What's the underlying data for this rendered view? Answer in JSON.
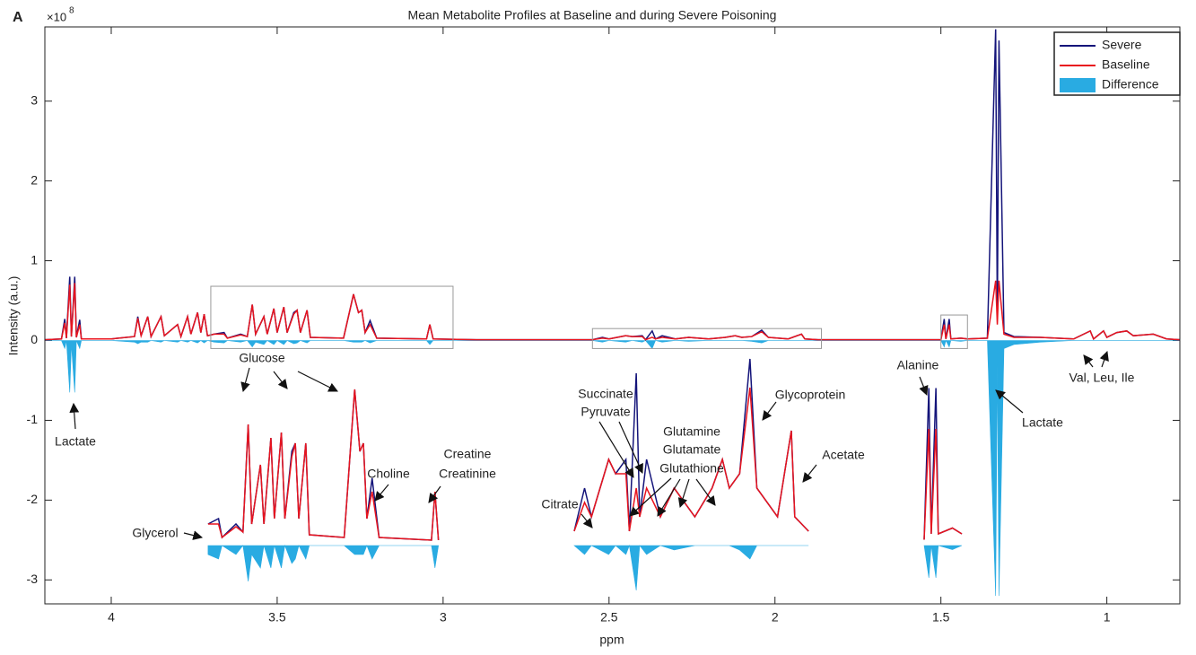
{
  "chart_data": {
    "type": "line",
    "panel_label": "A",
    "title": "Mean Metabolite Profiles at Baseline and during Severe Poisoning",
    "x_label": "ppm",
    "y_label": "Intensity (a.u.)",
    "y_exponent": [
      "×10",
      "8"
    ],
    "xlim": [
      4.2,
      0.78
    ],
    "xticks": [
      4,
      3.5,
      3,
      2.5,
      2,
      1.5,
      1
    ],
    "x_reversed": true,
    "ylim": [
      -3.3,
      3.93
    ],
    "yticks": [
      -3,
      -2,
      -1,
      0,
      1,
      2,
      3
    ],
    "legend_position": "upper right",
    "x": [
      4.2,
      4.15,
      4.14,
      4.135,
      4.125,
      4.12,
      4.11,
      4.105,
      4.095,
      4.09,
      4.0,
      3.93,
      3.92,
      3.91,
      3.89,
      3.88,
      3.85,
      3.84,
      3.8,
      3.79,
      3.77,
      3.76,
      3.74,
      3.73,
      3.72,
      3.71,
      3.69,
      3.66,
      3.65,
      3.61,
      3.59,
      3.575,
      3.565,
      3.54,
      3.53,
      3.51,
      3.5,
      3.48,
      3.47,
      3.45,
      3.44,
      3.43,
      3.41,
      3.4,
      3.3,
      3.27,
      3.255,
      3.245,
      3.235,
      3.22,
      3.2,
      3.05,
      3.04,
      3.03,
      2.9,
      2.55,
      2.52,
      2.5,
      2.45,
      2.43,
      2.4,
      2.39,
      2.37,
      2.36,
      2.34,
      2.3,
      2.26,
      2.2,
      2.15,
      2.12,
      2.1,
      2.07,
      2.04,
      2.02,
      1.96,
      1.92,
      1.91,
      1.87,
      1.6,
      1.5,
      1.49,
      1.485,
      1.475,
      1.47,
      1.44,
      1.42,
      1.36,
      1.335,
      1.33,
      1.325,
      1.31,
      1.28,
      1.2,
      1.1,
      1.05,
      1.04,
      1.01,
      1.0,
      0.97,
      0.94,
      0.92,
      0.86,
      0.82,
      0.78
    ],
    "series": [
      {
        "name": "Severe",
        "color": "#14147a",
        "kind": "line",
        "values": [
          0.01,
          0.02,
          0.27,
          0.03,
          0.8,
          0.05,
          0.8,
          0.04,
          0.26,
          0.02,
          0.02,
          0.05,
          0.3,
          0.06,
          0.3,
          0.05,
          0.3,
          0.06,
          0.2,
          0.05,
          0.3,
          0.08,
          0.35,
          0.1,
          0.33,
          0.06,
          0.08,
          0.1,
          0.03,
          0.08,
          0.05,
          0.45,
          0.08,
          0.3,
          0.08,
          0.4,
          0.1,
          0.42,
          0.1,
          0.35,
          0.38,
          0.1,
          0.38,
          0.04,
          0.03,
          0.58,
          0.35,
          0.38,
          0.1,
          0.25,
          0.03,
          0.02,
          0.2,
          0.02,
          0.01,
          0.01,
          0.04,
          0.02,
          0.06,
          0.05,
          0.06,
          0.01,
          0.12,
          0.02,
          0.06,
          0.02,
          0.04,
          0.02,
          0.04,
          0.06,
          0.04,
          0.05,
          0.13,
          0.04,
          0.02,
          0.08,
          0.02,
          0.01,
          0.01,
          0.01,
          0.27,
          0.02,
          0.27,
          0.02,
          0.03,
          0.02,
          0.03,
          3.9,
          0.3,
          3.76,
          0.1,
          0.05,
          0.04,
          0.02,
          0.12,
          0.02,
          0.12,
          0.04,
          0.1,
          0.12,
          0.06,
          0.08,
          0.02,
          0.01
        ]
      },
      {
        "name": "Baseline",
        "color": "#e8141e",
        "kind": "line",
        "values": [
          0.01,
          0.02,
          0.22,
          0.03,
          0.7,
          0.05,
          0.72,
          0.04,
          0.2,
          0.02,
          0.02,
          0.05,
          0.28,
          0.06,
          0.3,
          0.05,
          0.3,
          0.06,
          0.2,
          0.05,
          0.3,
          0.08,
          0.35,
          0.1,
          0.33,
          0.06,
          0.08,
          0.08,
          0.03,
          0.07,
          0.05,
          0.45,
          0.08,
          0.3,
          0.08,
          0.4,
          0.1,
          0.42,
          0.1,
          0.33,
          0.38,
          0.1,
          0.38,
          0.04,
          0.03,
          0.58,
          0.35,
          0.38,
          0.1,
          0.2,
          0.03,
          0.02,
          0.2,
          0.02,
          0.01,
          0.01,
          0.03,
          0.02,
          0.06,
          0.05,
          0.05,
          0.01,
          0.04,
          0.02,
          0.04,
          0.02,
          0.04,
          0.02,
          0.04,
          0.06,
          0.04,
          0.05,
          0.11,
          0.04,
          0.02,
          0.08,
          0.02,
          0.01,
          0.01,
          0.01,
          0.2,
          0.02,
          0.2,
          0.02,
          0.03,
          0.02,
          0.03,
          0.75,
          0.2,
          0.75,
          0.08,
          0.04,
          0.04,
          0.02,
          0.12,
          0.02,
          0.12,
          0.04,
          0.1,
          0.12,
          0.06,
          0.08,
          0.02,
          0.01
        ]
      },
      {
        "name": "Difference",
        "color": "#29abe2",
        "kind": "area",
        "values": [
          0,
          0,
          -0.1,
          0,
          -0.65,
          -0.05,
          -0.65,
          0,
          -0.1,
          0,
          0,
          -0.02,
          -0.04,
          -0.02,
          -0.02,
          0,
          -0.02,
          0,
          -0.02,
          0,
          -0.02,
          0,
          -0.03,
          0,
          -0.03,
          0,
          -0.02,
          -0.03,
          0,
          -0.02,
          0,
          -0.08,
          -0.02,
          -0.05,
          0,
          -0.05,
          0,
          -0.05,
          0,
          -0.04,
          -0.03,
          0,
          -0.03,
          0,
          0,
          -0.02,
          -0.02,
          -0.02,
          0,
          -0.03,
          0,
          0,
          -0.05,
          0,
          0,
          0,
          -0.02,
          0,
          -0.02,
          0,
          -0.02,
          0,
          -0.1,
          0,
          -0.02,
          0,
          -0.01,
          0,
          0,
          0,
          0,
          -0.01,
          -0.03,
          0,
          0,
          0,
          0,
          0,
          0,
          0,
          -0.08,
          0,
          -0.08,
          0,
          -0.01,
          0,
          0,
          -3.2,
          -0.3,
          -3.2,
          -0.1,
          -0.05,
          -0.02,
          0,
          0,
          0,
          0,
          0,
          0,
          0,
          0,
          0,
          0,
          0
        ]
      }
    ],
    "insets": [
      {
        "xlim": [
          3.7,
          2.97
        ]
      },
      {
        "xlim": [
          2.55,
          1.86
        ]
      },
      {
        "xlim": [
          1.5,
          1.42
        ]
      }
    ],
    "annotations": [
      "Glucose",
      "Lactate",
      "Choline",
      "Creatine",
      "Creatinine",
      "Glycerol",
      "Succinate",
      "Pyruvate",
      "Citrate",
      "Glutamine",
      "Glutamate",
      "Glutathione",
      "Glycoprotein",
      "Acetate",
      "Alanine",
      "Lactate",
      "Val, Leu, Ile"
    ]
  }
}
